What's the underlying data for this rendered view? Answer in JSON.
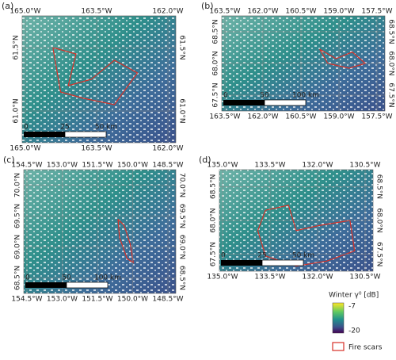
{
  "panels": [
    {
      "label": "(a)",
      "top_lons": [
        "165.0°W",
        "163.5°W",
        "162.0°W"
      ],
      "bottom_lons": [
        "165.0°W",
        "163.5°W",
        "162.0°W"
      ],
      "left_lats": [
        "61.5°N",
        "61.0°N"
      ],
      "right_lats": [
        "61.5°N",
        "61.0°N"
      ],
      "scale_labels": [
        "0",
        "25",
        "50 km"
      ]
    },
    {
      "label": "(b)",
      "top_lons": [
        "163.5°W",
        "162.0°W",
        "160.5°W",
        "159.0°W",
        "157.5°W"
      ],
      "bottom_lons": [
        "163.5°W",
        "162.0°W",
        "160.5°W",
        "159.0°W",
        "157.5°W"
      ],
      "left_lats": [
        "68.5°N",
        "68.0°N",
        "67.5°N"
      ],
      "right_lats": [
        "68.5°N",
        "68.0°N",
        "67.5°N"
      ],
      "scale_labels": [
        "0",
        "50",
        "100 km"
      ]
    },
    {
      "label": "(c)",
      "top_lons": [
        "154.5°W",
        "153.0°W",
        "151.5°W",
        "150.0°W",
        "148.5°W"
      ],
      "bottom_lons": [
        "154.5°W",
        "153.0°W",
        "151.5°W",
        "150.0°W",
        "148.5°W"
      ],
      "left_lats": [
        "70.0°N",
        "69.5°N",
        "69.0°N",
        "68.5°N"
      ],
      "right_lats": [
        "70.0°N",
        "69.5°N",
        "69.0°N",
        "68.5°N"
      ],
      "scale_labels": [
        "0",
        "50",
        "100 km"
      ]
    },
    {
      "label": "(d)",
      "top_lons": [
        "135.0°W",
        "133.5°W",
        "132.0°W",
        "130.5°W"
      ],
      "bottom_lons": [
        "135.0°W",
        "133.5°W",
        "132.0°W",
        "130.5°W"
      ],
      "left_lats": [
        "68.5°N",
        "68.0°N",
        "67.5°N"
      ],
      "right_lats": [
        "68.5°N",
        "68.0°N",
        "67.5°N"
      ],
      "scale_labels": [
        "0",
        "25",
        "50 km"
      ]
    }
  ],
  "legend": {
    "title": "Winter γ⁰ [dB]",
    "colorbar_max": "-7",
    "colorbar_min": "-20",
    "fire_label": "Fire scars"
  }
}
